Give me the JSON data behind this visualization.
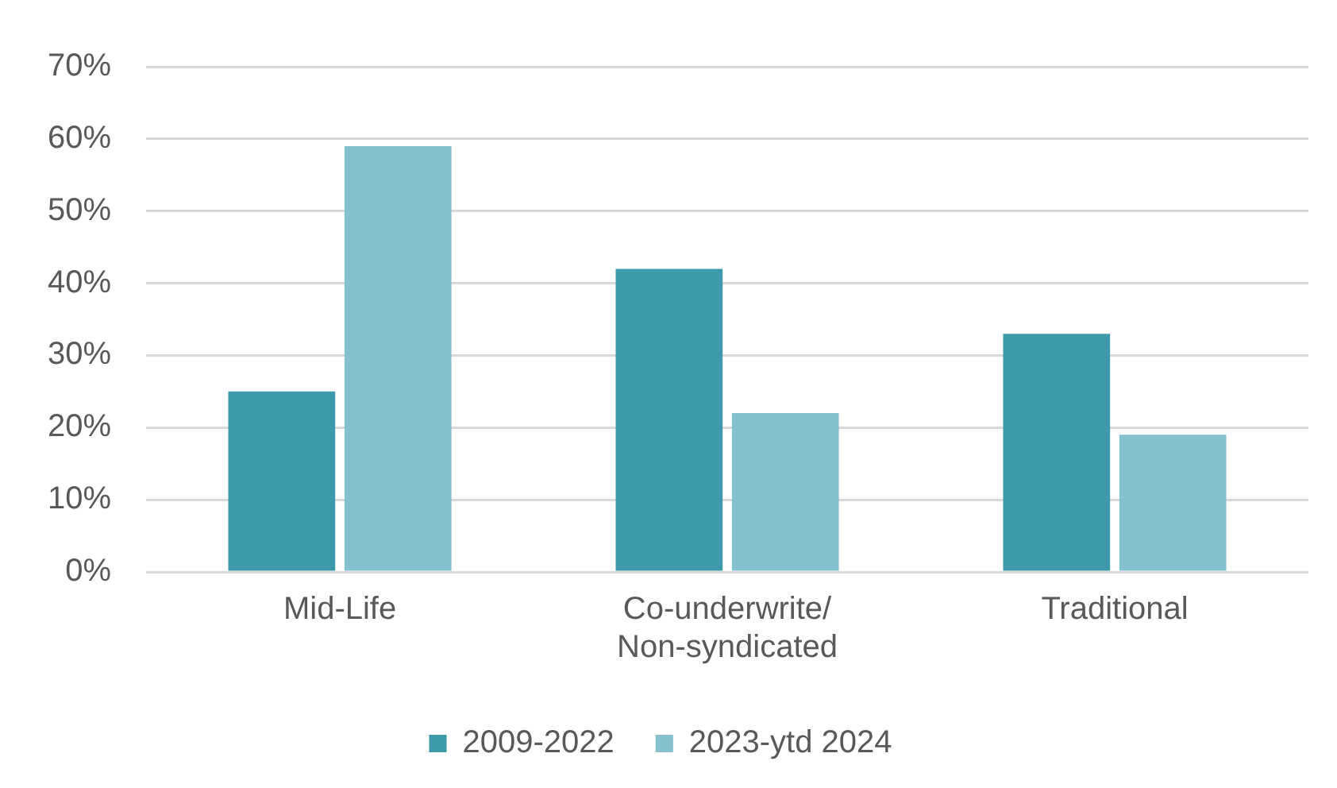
{
  "chart_data": {
    "type": "bar",
    "categories": [
      "Mid-Life",
      "Co-underwrite/ Non-syndicated",
      "Traditional"
    ],
    "series": [
      {
        "name": "2009-2022",
        "color": "#3d9aab",
        "values": [
          25,
          42,
          33
        ]
      },
      {
        "name": "2023-ytd 2024",
        "color": "#85c0cf",
        "values": [
          59,
          22,
          19
        ]
      }
    ],
    "ylim": [
      0,
      70
    ],
    "yticks": [
      {
        "value": 0,
        "label": "0%"
      },
      {
        "value": 10,
        "label": "10%"
      },
      {
        "value": 20,
        "label": "20%"
      },
      {
        "value": 30,
        "label": "30%"
      },
      {
        "value": 40,
        "label": "40%"
      },
      {
        "value": 50,
        "label": "50%"
      },
      {
        "value": 60,
        "label": "60%"
      },
      {
        "value": 70,
        "label": "70%"
      }
    ],
    "grid": "y",
    "legend": "bottom"
  }
}
